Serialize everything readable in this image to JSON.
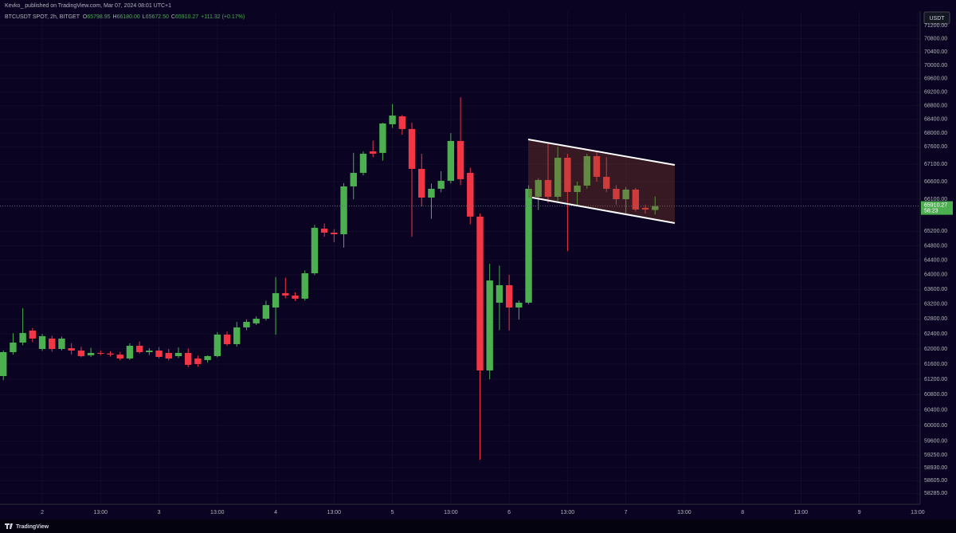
{
  "header": {
    "published": "Kevko_  published on TradingView.com, Mar 07, 2024 08:01 UTC+1",
    "symbol": "BTCUSDT SPOT, 2h, BITGET",
    "legend": [
      {
        "key": "O",
        "value": "65798.95"
      },
      {
        "key": "H",
        "value": "66180.00"
      },
      {
        "key": "L",
        "value": "65672.50"
      },
      {
        "key": "C",
        "value": "65910.27"
      }
    ],
    "change": "+111.32 (+0.17%)",
    "currency": "USDT",
    "brand": "TradingView"
  },
  "chart_data": {
    "type": "candlestick",
    "log_scale": true,
    "grid": true,
    "up_color": "#4caf50",
    "down_color": "#f23645",
    "last_price": 65910.27,
    "countdown": "58:23",
    "ylim": [
      58013,
      71641
    ],
    "yticks": [
      {
        "value": 71200,
        "label": "71200.00"
      },
      {
        "value": 70800,
        "label": "70800.00"
      },
      {
        "value": 70400,
        "label": "70400.00"
      },
      {
        "value": 70000,
        "label": "70000.00"
      },
      {
        "value": 69600,
        "label": "69600.00"
      },
      {
        "value": 69200,
        "label": "69200.00"
      },
      {
        "value": 68800,
        "label": "68800.00"
      },
      {
        "value": 68400,
        "label": "68400.00"
      },
      {
        "value": 68000,
        "label": "68000.00"
      },
      {
        "value": 67600,
        "label": "67600.00"
      },
      {
        "value": 67100,
        "label": "67100.00"
      },
      {
        "value": 66600,
        "label": "66600.00"
      },
      {
        "value": 66100,
        "label": "66100.00"
      },
      {
        "value": 65200,
        "label": "65200.00"
      },
      {
        "value": 64800,
        "label": "64800.00"
      },
      {
        "value": 64400,
        "label": "64400.00"
      },
      {
        "value": 64000,
        "label": "64000.00"
      },
      {
        "value": 63600,
        "label": "63600.00"
      },
      {
        "value": 63200,
        "label": "63200.00"
      },
      {
        "value": 62800,
        "label": "62800.00"
      },
      {
        "value": 62400,
        "label": "62400.00"
      },
      {
        "value": 62000,
        "label": "62000.00"
      },
      {
        "value": 61600,
        "label": "61600.00"
      },
      {
        "value": 61200,
        "label": "61200.00"
      },
      {
        "value": 60800,
        "label": "60800.00"
      },
      {
        "value": 60400,
        "label": "60400.00"
      },
      {
        "value": 60000,
        "label": "60000.00"
      },
      {
        "value": 59600,
        "label": "59600.00"
      },
      {
        "value": 59250,
        "label": "59250.00"
      },
      {
        "value": 58930,
        "label": "58930.00"
      },
      {
        "value": 58605,
        "label": "58605.00"
      },
      {
        "value": 58285,
        "label": "58285.00"
      }
    ],
    "categories": [
      null,
      null,
      null,
      null,
      "2",
      null,
      null,
      null,
      null,
      null,
      "13:00",
      null,
      null,
      null,
      null,
      null,
      "3",
      null,
      null,
      null,
      null,
      null,
      "13:00",
      null,
      null,
      null,
      null,
      null,
      "4",
      null,
      null,
      null,
      null,
      null,
      "13:00",
      null,
      null,
      null,
      null,
      null,
      "5",
      null,
      null,
      null,
      null,
      null,
      "13:00",
      null,
      null,
      null,
      null,
      null,
      "6",
      null,
      null,
      null,
      null,
      null,
      "13:00",
      null,
      null,
      null,
      null,
      null,
      "7",
      null,
      null,
      null,
      null,
      null,
      "13:00",
      null,
      null,
      null,
      null,
      null,
      "8",
      null,
      null,
      null,
      null,
      null,
      "13:00",
      null,
      null,
      null,
      null,
      null,
      "9",
      null,
      null,
      null,
      null,
      null,
      "13:00"
    ],
    "open": [
      61286,
      61916,
      62170,
      62490,
      62000,
      62277,
      62000,
      62021,
      61958,
      61832,
      61895,
      61880,
      61850,
      61748,
      62085,
      61916,
      61958,
      61895,
      61811,
      61895,
      61748,
      61706,
      61811,
      62383,
      62128,
      62575,
      62682,
      62808,
      63110,
      63499,
      63434,
      63348,
      64041,
      65276,
      65164,
      65119,
      66466,
      66852,
      67471,
      67425,
      68257,
      68488,
      68118,
      66966,
      66148,
      66398,
      66625,
      67771,
      66852,
      65612,
      61433,
      63240,
      63715,
      63110,
      63240,
      66171,
      66648,
      66171,
      67286,
      66307,
      66489,
      67332,
      66739,
      66398,
      66103,
      66375,
      65858,
      65798.95,
      null,
      null,
      null,
      null,
      null,
      null,
      null,
      null,
      null,
      null,
      null,
      null,
      null,
      null,
      null,
      null,
      null,
      null,
      null,
      null,
      null,
      null,
      null,
      null,
      null,
      null,
      null
    ],
    "high": [
      61960,
      62420,
      63090,
      62560,
      62400,
      62350,
      62330,
      62150,
      62060,
      62030,
      61960,
      61940,
      61920,
      62150,
      62200,
      62020,
      62050,
      62000,
      62040,
      62010,
      61820,
      61830,
      62450,
      62470,
      62720,
      62790,
      62870,
      63290,
      63940,
      63920,
      63520,
      64120,
      65380,
      65420,
      65260,
      66560,
      67430,
      67470,
      67780,
      68300,
      68850,
      68530,
      68300,
      67400,
      66550,
      66900,
      68000,
      69050,
      67000,
      65700,
      64300,
      64250,
      64000,
      63300,
      66500,
      66700,
      67700,
      67600,
      67400,
      66600,
      67400,
      67450,
      67300,
      66500,
      66450,
      66420,
      65950,
      66180,
      null,
      null,
      null,
      null,
      null,
      null,
      null,
      null,
      null,
      null,
      null,
      null,
      null,
      null,
      null,
      null,
      null,
      null,
      null,
      null,
      null,
      null,
      null,
      null,
      null,
      null,
      null
    ],
    "low": [
      61180,
      61850,
      62100,
      62180,
      61950,
      61930,
      61960,
      61850,
      61780,
      61790,
      61830,
      61800,
      61700,
      61710,
      61880,
      61840,
      61750,
      61700,
      61760,
      61520,
      61530,
      61640,
      61780,
      62080,
      62060,
      62500,
      62640,
      62760,
      62380,
      63360,
      63290,
      63300,
      63990,
      65050,
      64900,
      64750,
      66100,
      66780,
      67300,
      67200,
      68150,
      67950,
      65050,
      65900,
      65550,
      66300,
      66550,
      66500,
      65400,
      59131,
      61200,
      62500,
      62490,
      62786,
      63200,
      65800,
      66000,
      66050,
      64650,
      65900,
      66400,
      66600,
      66300,
      65950,
      65700,
      65750,
      65700,
      65672.5,
      null,
      null,
      null,
      null,
      null,
      null,
      null,
      null,
      null,
      null,
      null,
      null,
      null,
      null,
      null,
      null,
      null,
      null,
      null,
      null,
      null,
      null,
      null,
      null,
      null,
      null,
      null
    ],
    "close": [
      61916,
      62170,
      62426,
      62277,
      62341,
      62000,
      62277,
      61958,
      61811,
      61895,
      61880,
      61850,
      61748,
      62085,
      61916,
      61958,
      61790,
      61748,
      61895,
      61580,
      61601,
      61811,
      62383,
      62128,
      62575,
      62724,
      62808,
      63175,
      63499,
      63434,
      63348,
      64041,
      65299,
      65164,
      65119,
      66466,
      66852,
      67402,
      67402,
      68280,
      68511,
      68118,
      66966,
      66148,
      66398,
      66625,
      67771,
      66671,
      65612,
      61433,
      63844,
      63715,
      63110,
      63240,
      66398,
      66648,
      66171,
      67286,
      66307,
      66489,
      67332,
      66739,
      66398,
      66103,
      66375,
      65812,
      65812,
      65910.27,
      null,
      null,
      null,
      null,
      null,
      null,
      null,
      null,
      null,
      null,
      null,
      null,
      null,
      null,
      null,
      null,
      null,
      null,
      null,
      null,
      null,
      null,
      null,
      null,
      null,
      null,
      null
    ]
  }
}
